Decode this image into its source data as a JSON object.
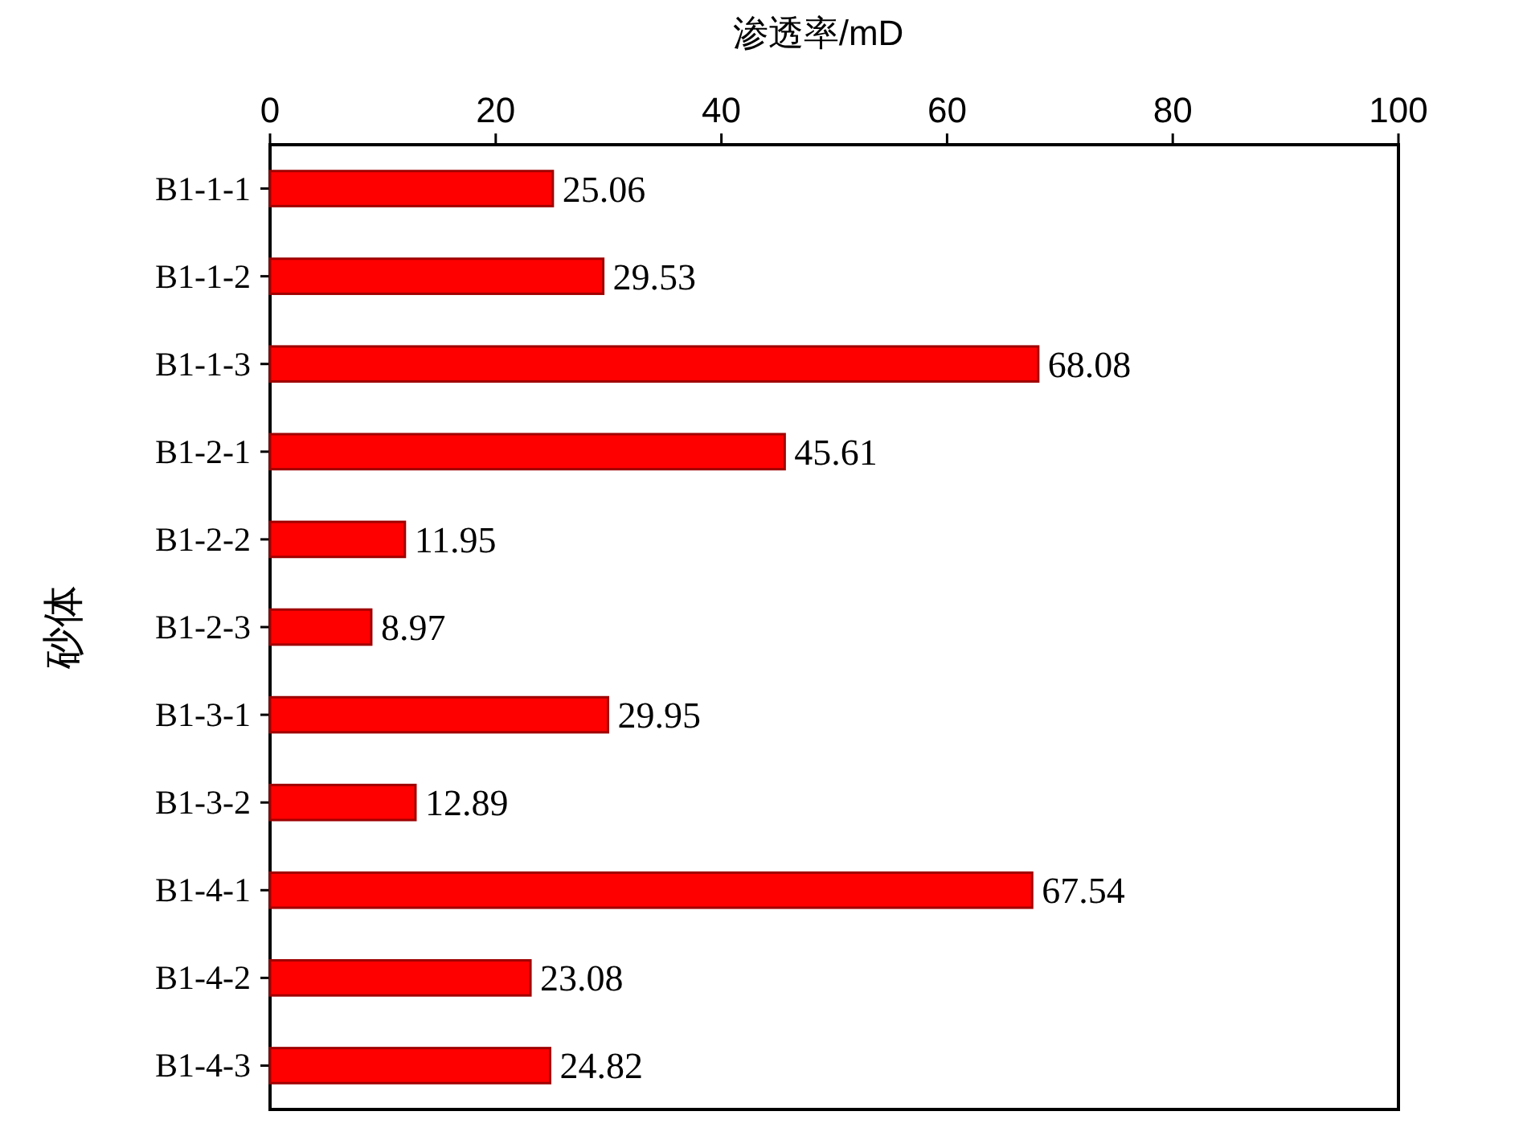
{
  "chart_data": {
    "type": "bar",
    "orientation": "horizontal",
    "xlabel": "渗透率/mD",
    "ylabel": "砂体",
    "categories": [
      "B1-1-1",
      "B1-1-2",
      "B1-1-3",
      "B1-2-1",
      "B1-2-2",
      "B1-2-3",
      "B1-3-1",
      "B1-3-2",
      "B1-4-1",
      "B1-4-2",
      "B1-4-3"
    ],
    "values": [
      25.06,
      29.53,
      68.08,
      45.61,
      11.95,
      8.97,
      29.95,
      12.89,
      67.54,
      23.08,
      24.82
    ],
    "color": "#ff0000",
    "xlim": [
      0,
      100
    ],
    "xticks": [
      0,
      20,
      40,
      60,
      80,
      100
    ],
    "data_labels": true
  }
}
